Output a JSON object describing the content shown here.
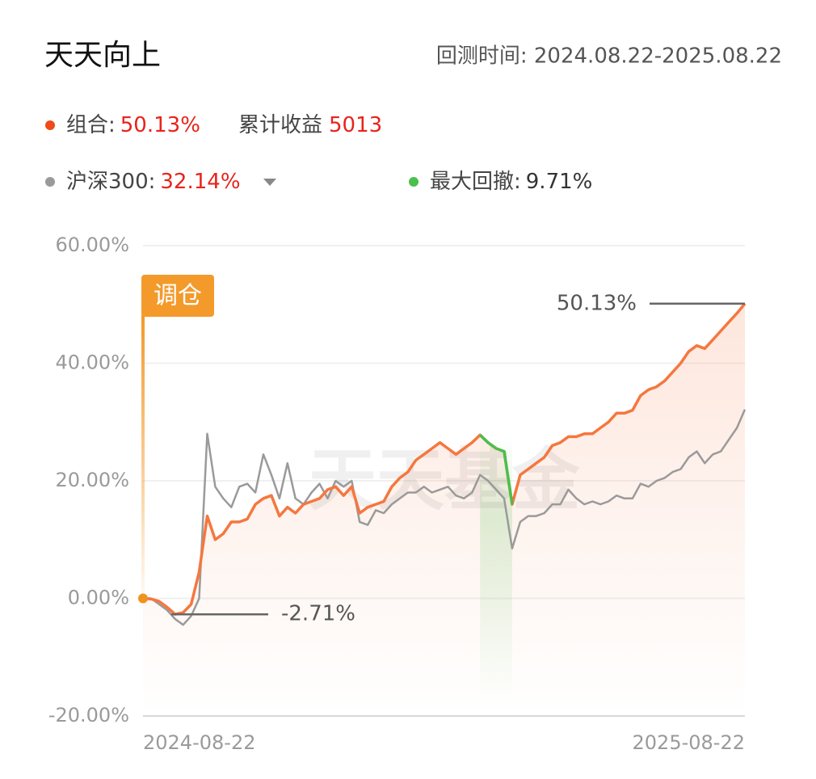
{
  "header": {
    "title": "天天向上",
    "period": "回测时间: 2024.08.22-2025.08.22"
  },
  "summary": [
    {
      "label": "组合:",
      "value": "50.13%"
    },
    {
      "label": "累计收益",
      "value": "5013"
    },
    {
      "label": "沪深300:",
      "value": "32.14%"
    },
    {
      "label": "最大回撤:",
      "value": "9.71%"
    }
  ],
  "chart_data": {
    "type": "line",
    "watermark": "天天基金",
    "categories": [
      "2024-08-22",
      null,
      null,
      null,
      null,
      null,
      null,
      null,
      null,
      null,
      null,
      null,
      null,
      null,
      null,
      null,
      null,
      null,
      null,
      null,
      null,
      null,
      null,
      null,
      null,
      null,
      null,
      null,
      null,
      null,
      null,
      null,
      null,
      null,
      null,
      null,
      null,
      null,
      null,
      null,
      null,
      null,
      null,
      null,
      null,
      null,
      null,
      null,
      null,
      null,
      null,
      null,
      null,
      null,
      null,
      null,
      null,
      null,
      null,
      null,
      null,
      null,
      null,
      null,
      null,
      null,
      null,
      null,
      null,
      null,
      null,
      null,
      null,
      null,
      null,
      "2025-08-22"
    ],
    "ylim": [
      -20,
      60
    ],
    "yticks": [
      {
        "value": -20,
        "label": "-20.00%"
      },
      {
        "value": 0,
        "label": "0.00%"
      },
      {
        "value": 20,
        "label": "20.00%"
      },
      {
        "value": 40,
        "label": "40.00%"
      },
      {
        "value": 60,
        "label": "60.00%"
      }
    ],
    "grid": true,
    "series": [
      {
        "color": "#9a9a9a",
        "values": [
          0,
          0,
          -1,
          -2,
          -3.5,
          -4.5,
          -3,
          0,
          28,
          19,
          17,
          15.5,
          19,
          19.5,
          18,
          24.5,
          21,
          17,
          23,
          17,
          16,
          18,
          19.5,
          17,
          20,
          19,
          20,
          13,
          12.5,
          15,
          14.5,
          16,
          17,
          18,
          18,
          19,
          18,
          18.5,
          19,
          17.5,
          17,
          18,
          21,
          20,
          18.5,
          17,
          8.5,
          13,
          14,
          14,
          14.5,
          16,
          16,
          18.5,
          17,
          16,
          16.5,
          16,
          16.5,
          17.5,
          17,
          17,
          19.5,
          19,
          20,
          20.5,
          21.5,
          22,
          24,
          25,
          23,
          24.5,
          25,
          27,
          29,
          32.14
        ]
      },
      {
        "color": "#f5773f",
        "values": [
          0,
          -0.1,
          -0.5,
          -1.5,
          -2.7,
          -2.4,
          -1,
          4.5,
          14,
          10,
          11,
          13,
          13,
          13.5,
          16,
          17,
          17.5,
          14,
          15.5,
          14.5,
          16,
          16.5,
          17,
          18.5,
          19,
          17.5,
          19,
          14.5,
          15.5,
          16,
          16.5,
          19,
          20.5,
          21.5,
          23.5,
          24.5,
          25.5,
          26.5,
          25.5,
          24.5,
          25.5,
          26.5,
          27.8,
          26.5,
          25.5,
          25,
          16,
          21,
          22,
          23,
          24,
          26,
          26.5,
          27.5,
          27.5,
          28,
          28,
          29,
          30,
          31.5,
          31.5,
          32,
          34.5,
          35.5,
          36,
          37,
          38.5,
          40,
          42,
          43,
          42.5,
          44,
          45.5,
          47,
          48.5,
          50.13
        ]
      },
      {
        "color": "#4cbf4c",
        "values": [
          null,
          null,
          null,
          null,
          null,
          null,
          null,
          null,
          null,
          null,
          null,
          null,
          null,
          null,
          null,
          null,
          null,
          null,
          null,
          null,
          null,
          null,
          null,
          null,
          null,
          null,
          null,
          null,
          null,
          null,
          null,
          null,
          null,
          null,
          null,
          null,
          null,
          null,
          null,
          null,
          null,
          null,
          27.8,
          26.5,
          25.5,
          25,
          16,
          null,
          null,
          null,
          null,
          null,
          null,
          null,
          null,
          null,
          null,
          null,
          null,
          null,
          null,
          null,
          null,
          null,
          null,
          null,
          null,
          null,
          null,
          null,
          null,
          null,
          null,
          null,
          null,
          null
        ]
      }
    ],
    "annotations": [
      {
        "label": "-2.71%",
        "value": -2.71
      },
      {
        "label": "50.13%",
        "value": 50.13
      },
      {
        "label": "调仓"
      }
    ]
  }
}
